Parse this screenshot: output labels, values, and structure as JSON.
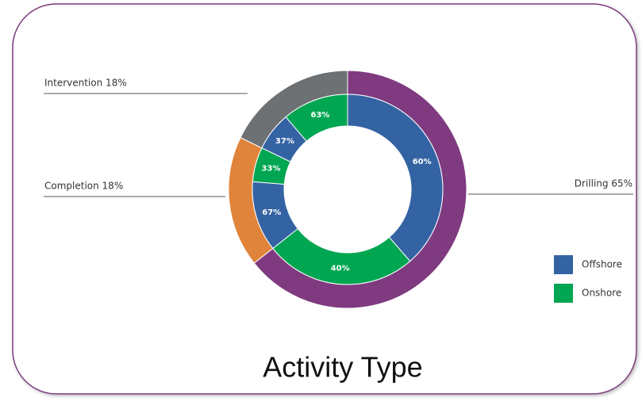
{
  "chart_data": {
    "type": "pie",
    "title": "Activity Type",
    "categories": [
      "Drilling 65%",
      "Completion 18%",
      "Intervention 18%"
    ],
    "values": [
      65,
      18,
      18
    ],
    "colors": [
      "#7f3a80",
      "#e0843b",
      "#6d7174"
    ],
    "series": [
      {
        "name": "Offshore",
        "color": "#3463a3",
        "values": [
          60,
          67,
          37
        ],
        "value_labels": [
          "60%",
          "67%",
          "37%"
        ]
      },
      {
        "name": "Onshore",
        "color": "#00a651",
        "values": [
          40,
          33,
          63
        ],
        "value_labels": [
          "40%",
          "33%",
          "63%"
        ]
      }
    ]
  }
}
